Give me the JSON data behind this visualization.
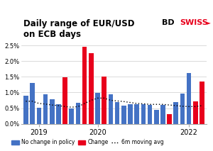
{
  "title": "Daily range of EUR/USD\non ECB days",
  "xlim": [
    -0.7,
    27.7
  ],
  "ylim": [
    0.0,
    0.026
  ],
  "bar_data": [
    {
      "x": 0,
      "value": 0.009,
      "color": "#4472c4"
    },
    {
      "x": 1,
      "value": 0.013,
      "color": "#4472c4"
    },
    {
      "x": 2,
      "value": 0.0052,
      "color": "#4472c4"
    },
    {
      "x": 3,
      "value": 0.0095,
      "color": "#4472c4"
    },
    {
      "x": 4,
      "value": 0.0078,
      "color": "#4472c4"
    },
    {
      "x": 5,
      "value": 0.0063,
      "color": "#4472c4"
    },
    {
      "x": 6,
      "value": 0.0148,
      "color": "#e8001c"
    },
    {
      "x": 7,
      "value": 0.0049,
      "color": "#4472c4"
    },
    {
      "x": 8,
      "value": 0.0067,
      "color": "#4472c4"
    },
    {
      "x": 9,
      "value": 0.0245,
      "color": "#e8001c"
    },
    {
      "x": 10,
      "value": 0.0225,
      "color": "#e8001c"
    },
    {
      "x": 11,
      "value": 0.0099,
      "color": "#4472c4"
    },
    {
      "x": 12,
      "value": 0.015,
      "color": "#e8001c"
    },
    {
      "x": 13,
      "value": 0.0095,
      "color": "#4472c4"
    },
    {
      "x": 14,
      "value": 0.0069,
      "color": "#4472c4"
    },
    {
      "x": 15,
      "value": 0.0058,
      "color": "#4472c4"
    },
    {
      "x": 16,
      "value": 0.0062,
      "color": "#4472c4"
    },
    {
      "x": 17,
      "value": 0.0063,
      "color": "#4472c4"
    },
    {
      "x": 18,
      "value": 0.0062,
      "color": "#4472c4"
    },
    {
      "x": 19,
      "value": 0.006,
      "color": "#4472c4"
    },
    {
      "x": 20,
      "value": 0.0044,
      "color": "#4472c4"
    },
    {
      "x": 21,
      "value": 0.006,
      "color": "#4472c4"
    },
    {
      "x": 22,
      "value": 0.0031,
      "color": "#e8001c"
    },
    {
      "x": 23,
      "value": 0.007,
      "color": "#4472c4"
    },
    {
      "x": 24,
      "value": 0.0097,
      "color": "#4472c4"
    },
    {
      "x": 25,
      "value": 0.0163,
      "color": "#4472c4"
    },
    {
      "x": 26,
      "value": 0.0072,
      "color": "#e8001c"
    },
    {
      "x": 27,
      "value": 0.0134,
      "color": "#e8001c"
    }
  ],
  "moving_avg": [
    0.0072,
    0.0072,
    0.0065,
    0.0063,
    0.006,
    0.0058,
    0.0055,
    0.0053,
    0.0055,
    0.0065,
    0.0075,
    0.0082,
    0.0082,
    0.0075,
    0.0073,
    0.0071,
    0.0068,
    0.0065,
    0.0064,
    0.0062,
    0.0062,
    0.0062,
    0.006,
    0.0058,
    0.0056,
    0.0055,
    0.0055,
    0.0058
  ],
  "yticks": [
    0.0,
    0.005,
    0.01,
    0.015,
    0.02,
    0.025
  ],
  "ytick_labels": [
    "0.0%",
    "0.5%",
    "1.0%",
    "1.5%",
    "2.0%",
    "2.5%"
  ],
  "xtick_positions": [
    2,
    11,
    25
  ],
  "xtick_labels": [
    "2019",
    "2020",
    "2022"
  ],
  "bar_color_blue": "#4472c4",
  "bar_color_red": "#e8001c",
  "ma_color": "#000000",
  "legend_blue_label": "No change in policy",
  "legend_red_label": "Change",
  "legend_ma_label": "6m moving avg",
  "background_color": "#ffffff",
  "logo_bd": "BD",
  "logo_swiss": "SWISS",
  "logo_color_bd": "#000000",
  "logo_color_swiss": "#e8001c",
  "logo_arrow": "►"
}
